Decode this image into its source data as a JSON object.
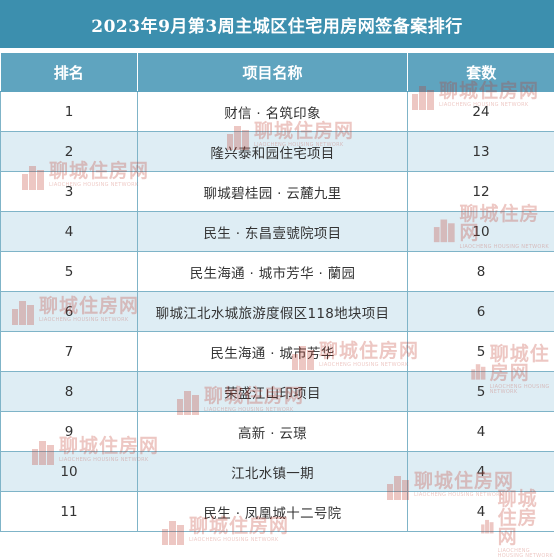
{
  "title": "2023年9月第3周主城区住宅用房网签备案排行",
  "headers": {
    "rank": "排名",
    "project": "项目名称",
    "count": "套数"
  },
  "rows": [
    {
      "rank": "1",
      "project": "财信 · 名筑印象",
      "count": "24"
    },
    {
      "rank": "2",
      "project": "隆兴泰和园住宅项目",
      "count": "13"
    },
    {
      "rank": "3",
      "project": "聊城碧桂园 · 云麓九里",
      "count": "12"
    },
    {
      "rank": "4",
      "project": "民生 · 东昌壹號院项目",
      "count": "10"
    },
    {
      "rank": "5",
      "project": "民生海通 · 城市芳华 · 蘭园",
      "count": "8"
    },
    {
      "rank": "6",
      "project": "聊城江北水城旅游度假区118地块项目",
      "count": "6"
    },
    {
      "rank": "7",
      "project": "民生海通 · 城市芳华",
      "count": "5"
    },
    {
      "rank": "8",
      "project": "荣盛江山印项目",
      "count": "5"
    },
    {
      "rank": "9",
      "project": "高新 · 云璟",
      "count": "4"
    },
    {
      "rank": "10",
      "project": "江北水镇一期",
      "count": "4"
    },
    {
      "rank": "11",
      "project": "民生 · 凤凰城十二号院",
      "count": "4"
    }
  ],
  "watermark": {
    "text": "聊城住房网",
    "subtext": "LIAOCHENG HOUSING NETWORK"
  },
  "colors": {
    "title_bg": "#3c8fae",
    "header_bg": "#5fa4bf",
    "row_alt_bg": "#deedf4",
    "border": "#7fb4c8",
    "watermark": "#c0392b"
  }
}
